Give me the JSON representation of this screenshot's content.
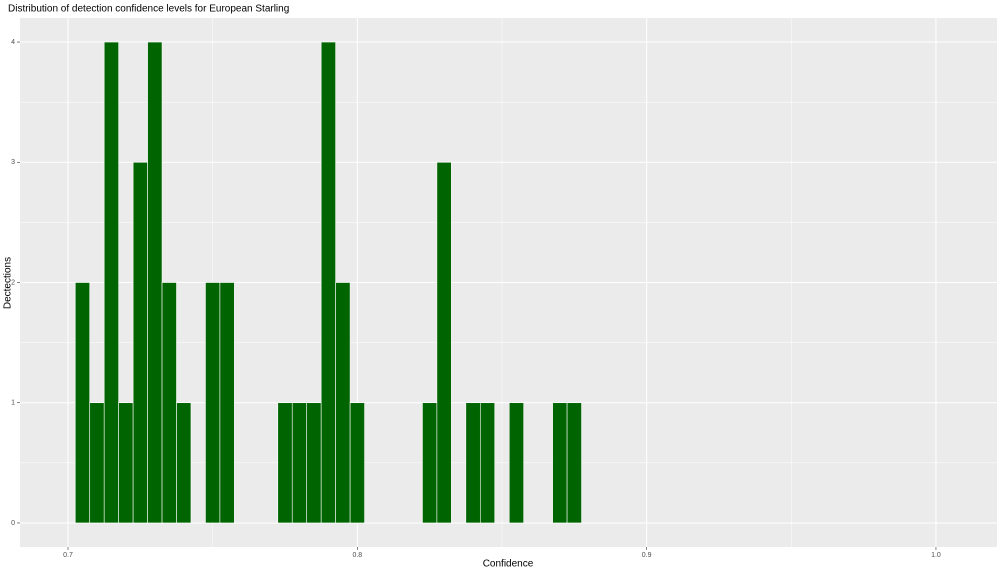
{
  "chart_data": {
    "type": "histogram",
    "title": "Distribution of detection confidence levels for European Starling",
    "x_label": "Confidence",
    "y_label": "Dectections",
    "bins": [
      0.7025,
      0.7075,
      0.7125,
      0.7175,
      0.7225,
      0.7275,
      0.7325,
      0.7375,
      0.7425,
      0.7475,
      0.7525,
      0.7575,
      0.7625,
      0.7675,
      0.7725,
      0.7775,
      0.7825,
      0.7875,
      0.7925,
      0.7975,
      0.8025,
      0.8075,
      0.8125,
      0.8175,
      0.8225,
      0.8275,
      0.8325,
      0.8375,
      0.8425,
      0.8475,
      0.8525,
      0.8575,
      0.8625,
      0.8675,
      0.8725,
      0.8775
    ],
    "values": [
      2,
      1,
      4,
      1,
      3,
      4,
      2,
      1,
      0,
      2,
      2,
      0,
      0,
      0,
      1,
      1,
      1,
      4,
      2,
      1,
      0,
      0,
      0,
      0,
      1,
      3,
      0,
      1,
      1,
      0,
      1,
      0,
      0,
      1,
      1
    ],
    "color": "#006400",
    "xlim": [
      0.6834,
      1.0211
    ],
    "xticks": [
      0.7,
      0.8,
      0.9,
      {
        "value": 1,
        "label": "1.0"
      }
    ],
    "ylim": [
      -0.2,
      4.2
    ],
    "yticks": [
      0,
      1,
      2,
      3,
      4
    ],
    "grid": true
  }
}
